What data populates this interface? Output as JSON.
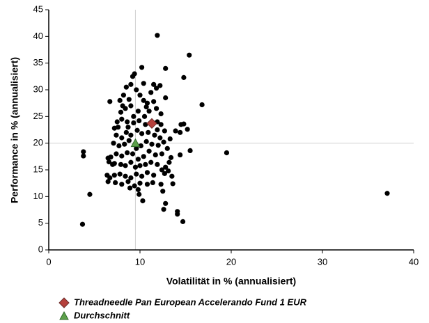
{
  "chart_data": {
    "type": "scatter",
    "xlabel": "Volatilität in % (annualisiert)",
    "ylabel": "Performance in % (annualisiert)",
    "xlim": [
      0,
      40
    ],
    "xticks": [
      0,
      10,
      20,
      30,
      40
    ],
    "ylim": [
      0,
      45
    ],
    "yticks": [
      0,
      5,
      10,
      15,
      20,
      25,
      30,
      35,
      40,
      45
    ],
    "crosshair": true,
    "series": [
      {
        "color": "#000000",
        "marker": "circle",
        "x": [
          3.7,
          3.8,
          3.8,
          4.5,
          37.1,
          19.5,
          16.8,
          15.4,
          14.8,
          11.9,
          12.8,
          10.2,
          15.5,
          14.7,
          14.1,
          14.1,
          12.8,
          12.6,
          12.5,
          13.6,
          15.2,
          14.5,
          14.8,
          14.4,
          13.9,
          14.4,
          13.1,
          13.2,
          12.8,
          10.3,
          9.9,
          6.7,
          7,
          6.5,
          6.4,
          7.8,
          8.2,
          8.5,
          9,
          9.2,
          9.4,
          9.6,
          10,
          10.4,
          10.8,
          11.2,
          11.5,
          11.8,
          12.2,
          11,
          11.8,
          12.3,
          10.5,
          9.8,
          9,
          8.4,
          7.9,
          7.5,
          7.2,
          7.6,
          8,
          8.6,
          9.3,
          9.9,
          10.6,
          11.9,
          12.3,
          12.7,
          12.2,
          11.6,
          10.9,
          10.2,
          9.7,
          9,
          8.5,
          8,
          7.4,
          7.1,
          7.7,
          8.3,
          8.8,
          9.6,
          10.1,
          10.7,
          11.3,
          12,
          12.6,
          13,
          12.4,
          11.7,
          11,
          10.4,
          9.8,
          9.2,
          8.6,
          8,
          7.4,
          6.8,
          6.6,
          7.2,
          7.9,
          8.4,
          9,
          9.5,
          10,
          10.6,
          11.2,
          11.9,
          12.4,
          12.7,
          11.5,
          10.8,
          10.2,
          9.6,
          9,
          8.4,
          7.8,
          7.2,
          6.7,
          6.5,
          7.3,
          8,
          8.7,
          9.4,
          10,
          10.8,
          11.4,
          9.8,
          8.9,
          12.3,
          13.4,
          13.5,
          11.5,
          10.4,
          8.8,
          8.1,
          12.8,
          11.9,
          13.3,
          9.3,
          8.7,
          10.7
        ],
        "values": [
          4.8,
          18.4,
          17.6,
          10.4,
          10.6,
          18.2,
          27.2,
          36.5,
          32.3,
          40.2,
          34,
          34.2,
          18.6,
          5.3,
          7.2,
          6.7,
          8.7,
          7.6,
          11,
          12.4,
          22.6,
          23.5,
          23.6,
          22,
          22.3,
          17.8,
          14.8,
          16.4,
          15.5,
          9.2,
          10.4,
          27.8,
          16,
          17.2,
          14,
          28,
          29,
          30.5,
          31,
          32.5,
          33,
          30,
          29,
          28,
          27.5,
          29.5,
          31,
          30.3,
          30.8,
          26,
          26.5,
          25.5,
          25,
          26,
          27,
          26.5,
          25.8,
          24,
          22.8,
          23,
          24.5,
          24,
          23.8,
          24.2,
          23.5,
          24,
          23.5,
          22.3,
          21,
          21.5,
          22,
          21.8,
          22.4,
          21.5,
          22,
          21,
          21.5,
          20,
          19.5,
          19.8,
          20.5,
          19,
          19.5,
          20.3,
          19.8,
          19.6,
          20.2,
          19,
          18,
          17.8,
          18.5,
          17.5,
          17,
          18,
          18.2,
          17.6,
          18,
          17.4,
          16.5,
          16.2,
          16,
          15.8,
          16.4,
          15.5,
          15.8,
          16,
          16.4,
          16,
          15,
          14.3,
          14,
          14.5,
          13.8,
          14.2,
          13.5,
          13.8,
          14.2,
          14,
          13.5,
          12.8,
          12.6,
          12.3,
          12.8,
          12,
          12.5,
          12.3,
          12.6,
          11.3,
          11.6,
          12.3,
          17.3,
          13.8,
          27.8,
          31.2,
          28.2,
          27,
          28.5,
          22.5,
          20.8,
          25,
          23,
          26.8
        ]
      },
      {
        "name": "Threadneedle Pan European Accelerando Fund 1 EUR",
        "color": "#b5403c",
        "marker": "diamond",
        "x": [
          11.3
        ],
        "values": [
          23.7
        ]
      },
      {
        "name": "Durchschnitt",
        "color": "#5ca04a",
        "marker": "triangle",
        "x": [
          9.5
        ],
        "values": [
          20
        ]
      }
    ]
  }
}
